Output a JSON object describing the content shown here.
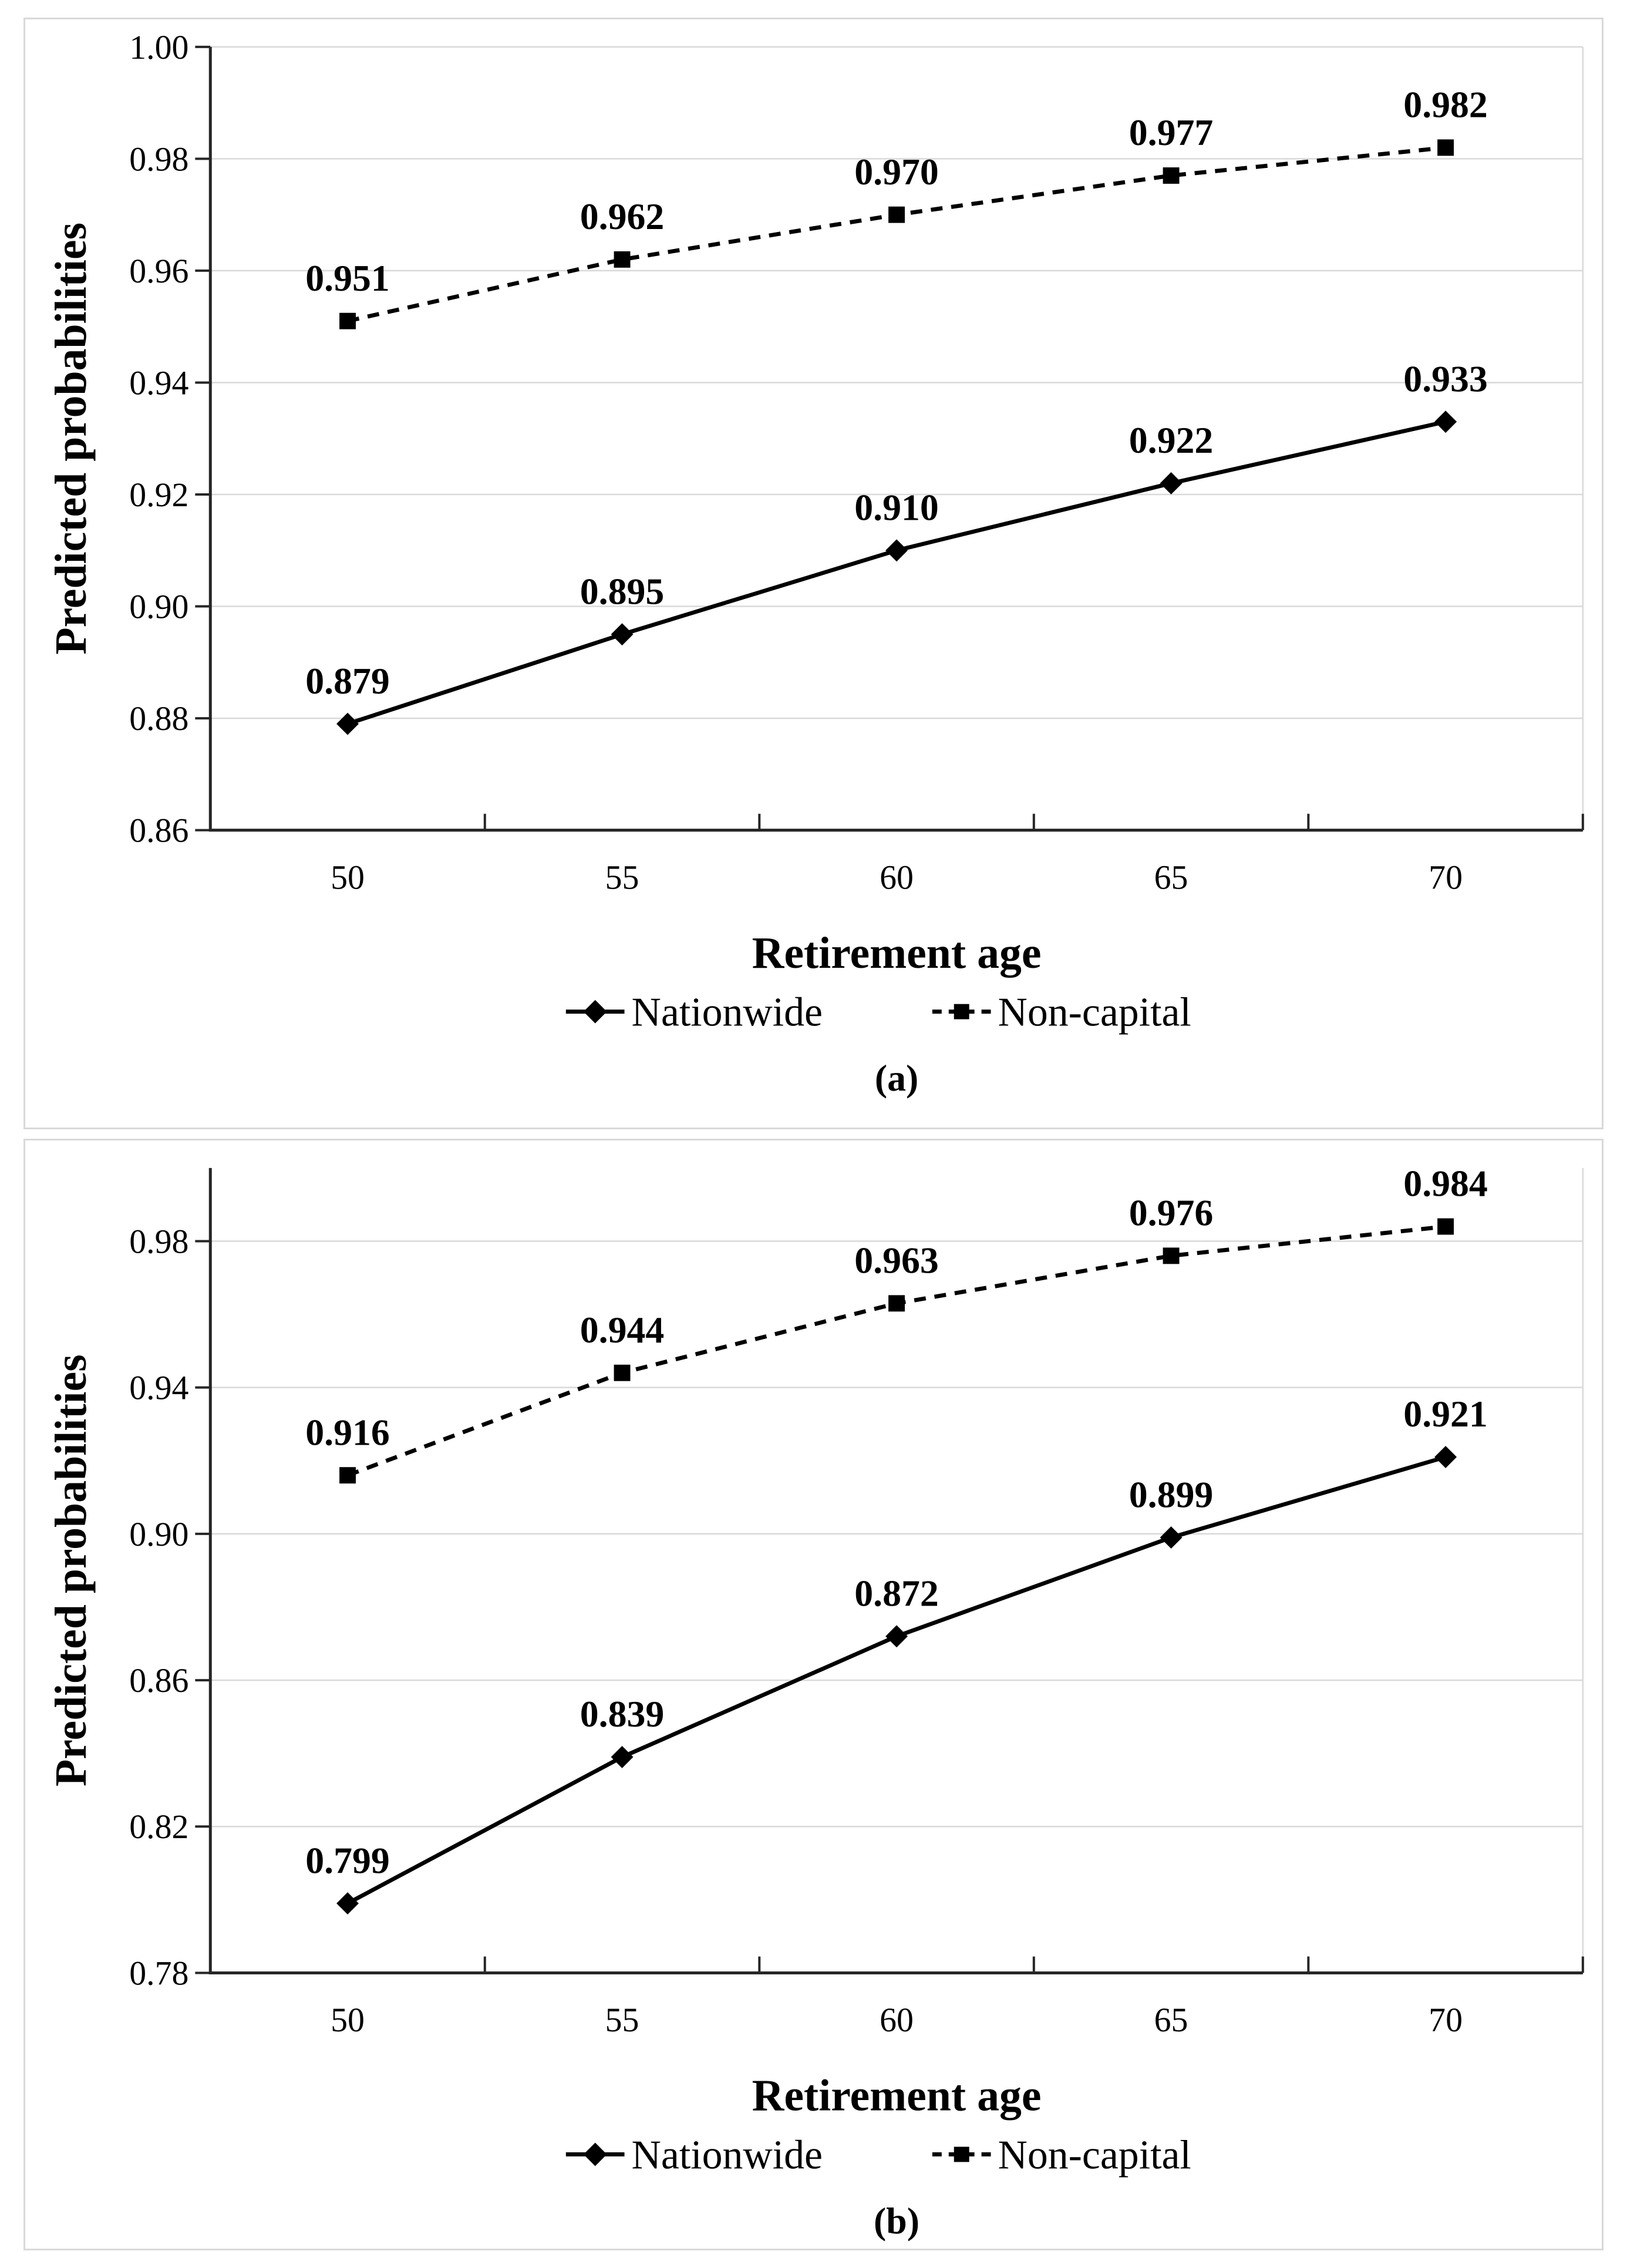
{
  "figure": {
    "colors": {
      "series": "#000000",
      "grid": "#d9d9d9",
      "axis": "#262626",
      "panel_border": "#d9d9d9",
      "text": "#000000"
    },
    "panel_captions": [
      "(a)",
      "(b)"
    ]
  },
  "chart_data": [
    {
      "type": "line",
      "caption": "(a)",
      "xlabel": "Retirement age",
      "ylabel": "Predicted probabilities",
      "x": [
        50,
        55,
        60,
        65,
        70
      ],
      "x_labels": [
        "50",
        "55",
        "60",
        "65",
        "70"
      ],
      "ylim": [
        0.86,
        1.0
      ],
      "yticks": {
        "values": [
          0.86,
          0.88,
          0.9,
          0.92,
          0.94,
          0.96,
          0.98,
          1.0
        ],
        "labels": [
          "0.86",
          "0.88",
          "0.90",
          "0.92",
          "0.94",
          "0.96",
          "0.98",
          "1.00"
        ]
      },
      "grid": "horizontal",
      "legend_position": "bottom",
      "series": [
        {
          "name": "Nationwide",
          "marker": "diamond",
          "line": "solid",
          "values": [
            0.879,
            0.895,
            0.91,
            0.922,
            0.933
          ],
          "labels": [
            "0.879",
            "0.895",
            "0.910",
            "0.922",
            "0.933"
          ]
        },
        {
          "name": "Non-capital",
          "marker": "square",
          "line": "dashed",
          "values": [
            0.951,
            0.962,
            0.97,
            0.977,
            0.982
          ],
          "labels": [
            "0.951",
            "0.962",
            "0.970",
            "0.977",
            "0.982"
          ]
        }
      ]
    },
    {
      "type": "line",
      "caption": "(b)",
      "xlabel": "Retirement age",
      "ylabel": "Predicted probabilities",
      "x": [
        50,
        55,
        60,
        65,
        70
      ],
      "x_labels": [
        "50",
        "55",
        "60",
        "65",
        "70"
      ],
      "ylim": [
        0.78,
        1.0
      ],
      "yticks": {
        "values": [
          0.78,
          0.82,
          0.86,
          0.9,
          0.94,
          0.98
        ],
        "labels": [
          "0.78",
          "0.82",
          "0.86",
          "0.90",
          "0.94",
          "0.98"
        ]
      },
      "grid": "horizontal",
      "legend_position": "bottom",
      "series": [
        {
          "name": "Nationwide",
          "marker": "diamond",
          "line": "solid",
          "values": [
            0.799,
            0.839,
            0.872,
            0.899,
            0.921
          ],
          "labels": [
            "0.799",
            "0.839",
            "0.872",
            "0.899",
            "0.921"
          ]
        },
        {
          "name": "Non-capital",
          "marker": "square",
          "line": "dashed",
          "values": [
            0.916,
            0.944,
            0.963,
            0.976,
            0.984
          ],
          "labels": [
            "0.916",
            "0.944",
            "0.963",
            "0.976",
            "0.984"
          ]
        }
      ]
    }
  ]
}
